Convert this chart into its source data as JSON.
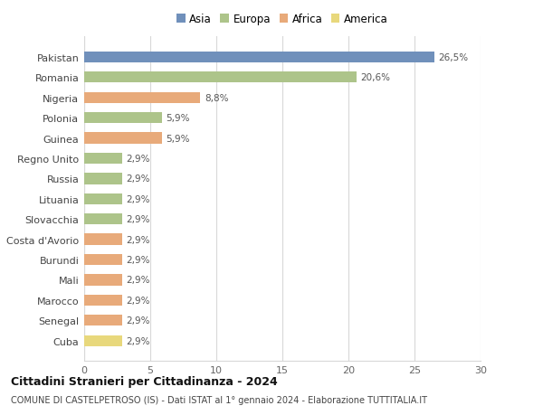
{
  "countries": [
    "Pakistan",
    "Romania",
    "Nigeria",
    "Polonia",
    "Guinea",
    "Regno Unito",
    "Russia",
    "Lituania",
    "Slovacchia",
    "Costa d'Avorio",
    "Burundi",
    "Mali",
    "Marocco",
    "Senegal",
    "Cuba"
  ],
  "values": [
    26.5,
    20.6,
    8.8,
    5.9,
    5.9,
    2.9,
    2.9,
    2.9,
    2.9,
    2.9,
    2.9,
    2.9,
    2.9,
    2.9,
    2.9
  ],
  "labels": [
    "26,5%",
    "20,6%",
    "8,8%",
    "5,9%",
    "5,9%",
    "2,9%",
    "2,9%",
    "2,9%",
    "2,9%",
    "2,9%",
    "2,9%",
    "2,9%",
    "2,9%",
    "2,9%",
    "2,9%"
  ],
  "colors": [
    "#7090bb",
    "#adc48a",
    "#e8aa7a",
    "#adc48a",
    "#e8aa7a",
    "#adc48a",
    "#adc48a",
    "#adc48a",
    "#adc48a",
    "#e8aa7a",
    "#e8aa7a",
    "#e8aa7a",
    "#e8aa7a",
    "#e8aa7a",
    "#e8d87c"
  ],
  "legend_labels": [
    "Asia",
    "Europa",
    "Africa",
    "America"
  ],
  "legend_colors": [
    "#7090bb",
    "#adc48a",
    "#e8aa7a",
    "#e8d87c"
  ],
  "title": "Cittadini Stranieri per Cittadinanza - 2024",
  "subtitle": "COMUNE DI CASTELPETROSO (IS) - Dati ISTAT al 1° gennaio 2024 - Elaborazione TUTTITALIA.IT",
  "xlim": [
    0,
    30
  ],
  "xticks": [
    0,
    5,
    10,
    15,
    20,
    25,
    30
  ],
  "background_color": "#ffffff",
  "grid_color": "#d8d8d8",
  "bar_height": 0.55
}
